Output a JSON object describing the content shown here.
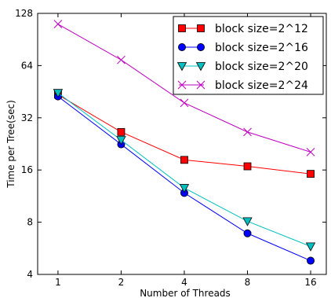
{
  "chart_data": {
    "type": "line",
    "xlabel": "Number of Threads",
    "ylabel": "Time per Tree(sec)",
    "x_scale": "log2",
    "y_scale": "log2",
    "x": [
      1,
      2,
      4,
      8,
      16
    ],
    "x_tick_labels": [
      "1",
      "2",
      "4",
      "8",
      "16"
    ],
    "y_ticks": [
      4,
      8,
      16,
      32,
      64,
      128
    ],
    "y_tick_labels": [
      "4",
      "8",
      "16",
      "32",
      "64",
      "128"
    ],
    "xlim": [
      0.8,
      19
    ],
    "ylim": [
      4,
      128
    ],
    "grid": false,
    "legend_position": "top-right",
    "series": [
      {
        "name": "block size=2^12",
        "color": "#ff0000",
        "marker": "square",
        "values": [
          43.5,
          26.5,
          18.3,
          16.8,
          15.2
        ]
      },
      {
        "name": "block size=2^16",
        "color": "#0000ff",
        "marker": "circle",
        "values": [
          42.5,
          22.5,
          11.8,
          6.9,
          4.8
        ]
      },
      {
        "name": "block size=2^20",
        "color": "#00bfbf",
        "marker": "triangle",
        "values": [
          44.5,
          23.8,
          12.6,
          8.1,
          5.8
        ]
      },
      {
        "name": "block size=2^24",
        "color": "#bf00bf",
        "marker": "x",
        "values": [
          111,
          69,
          39,
          26.5,
          20.3
        ]
      }
    ]
  }
}
